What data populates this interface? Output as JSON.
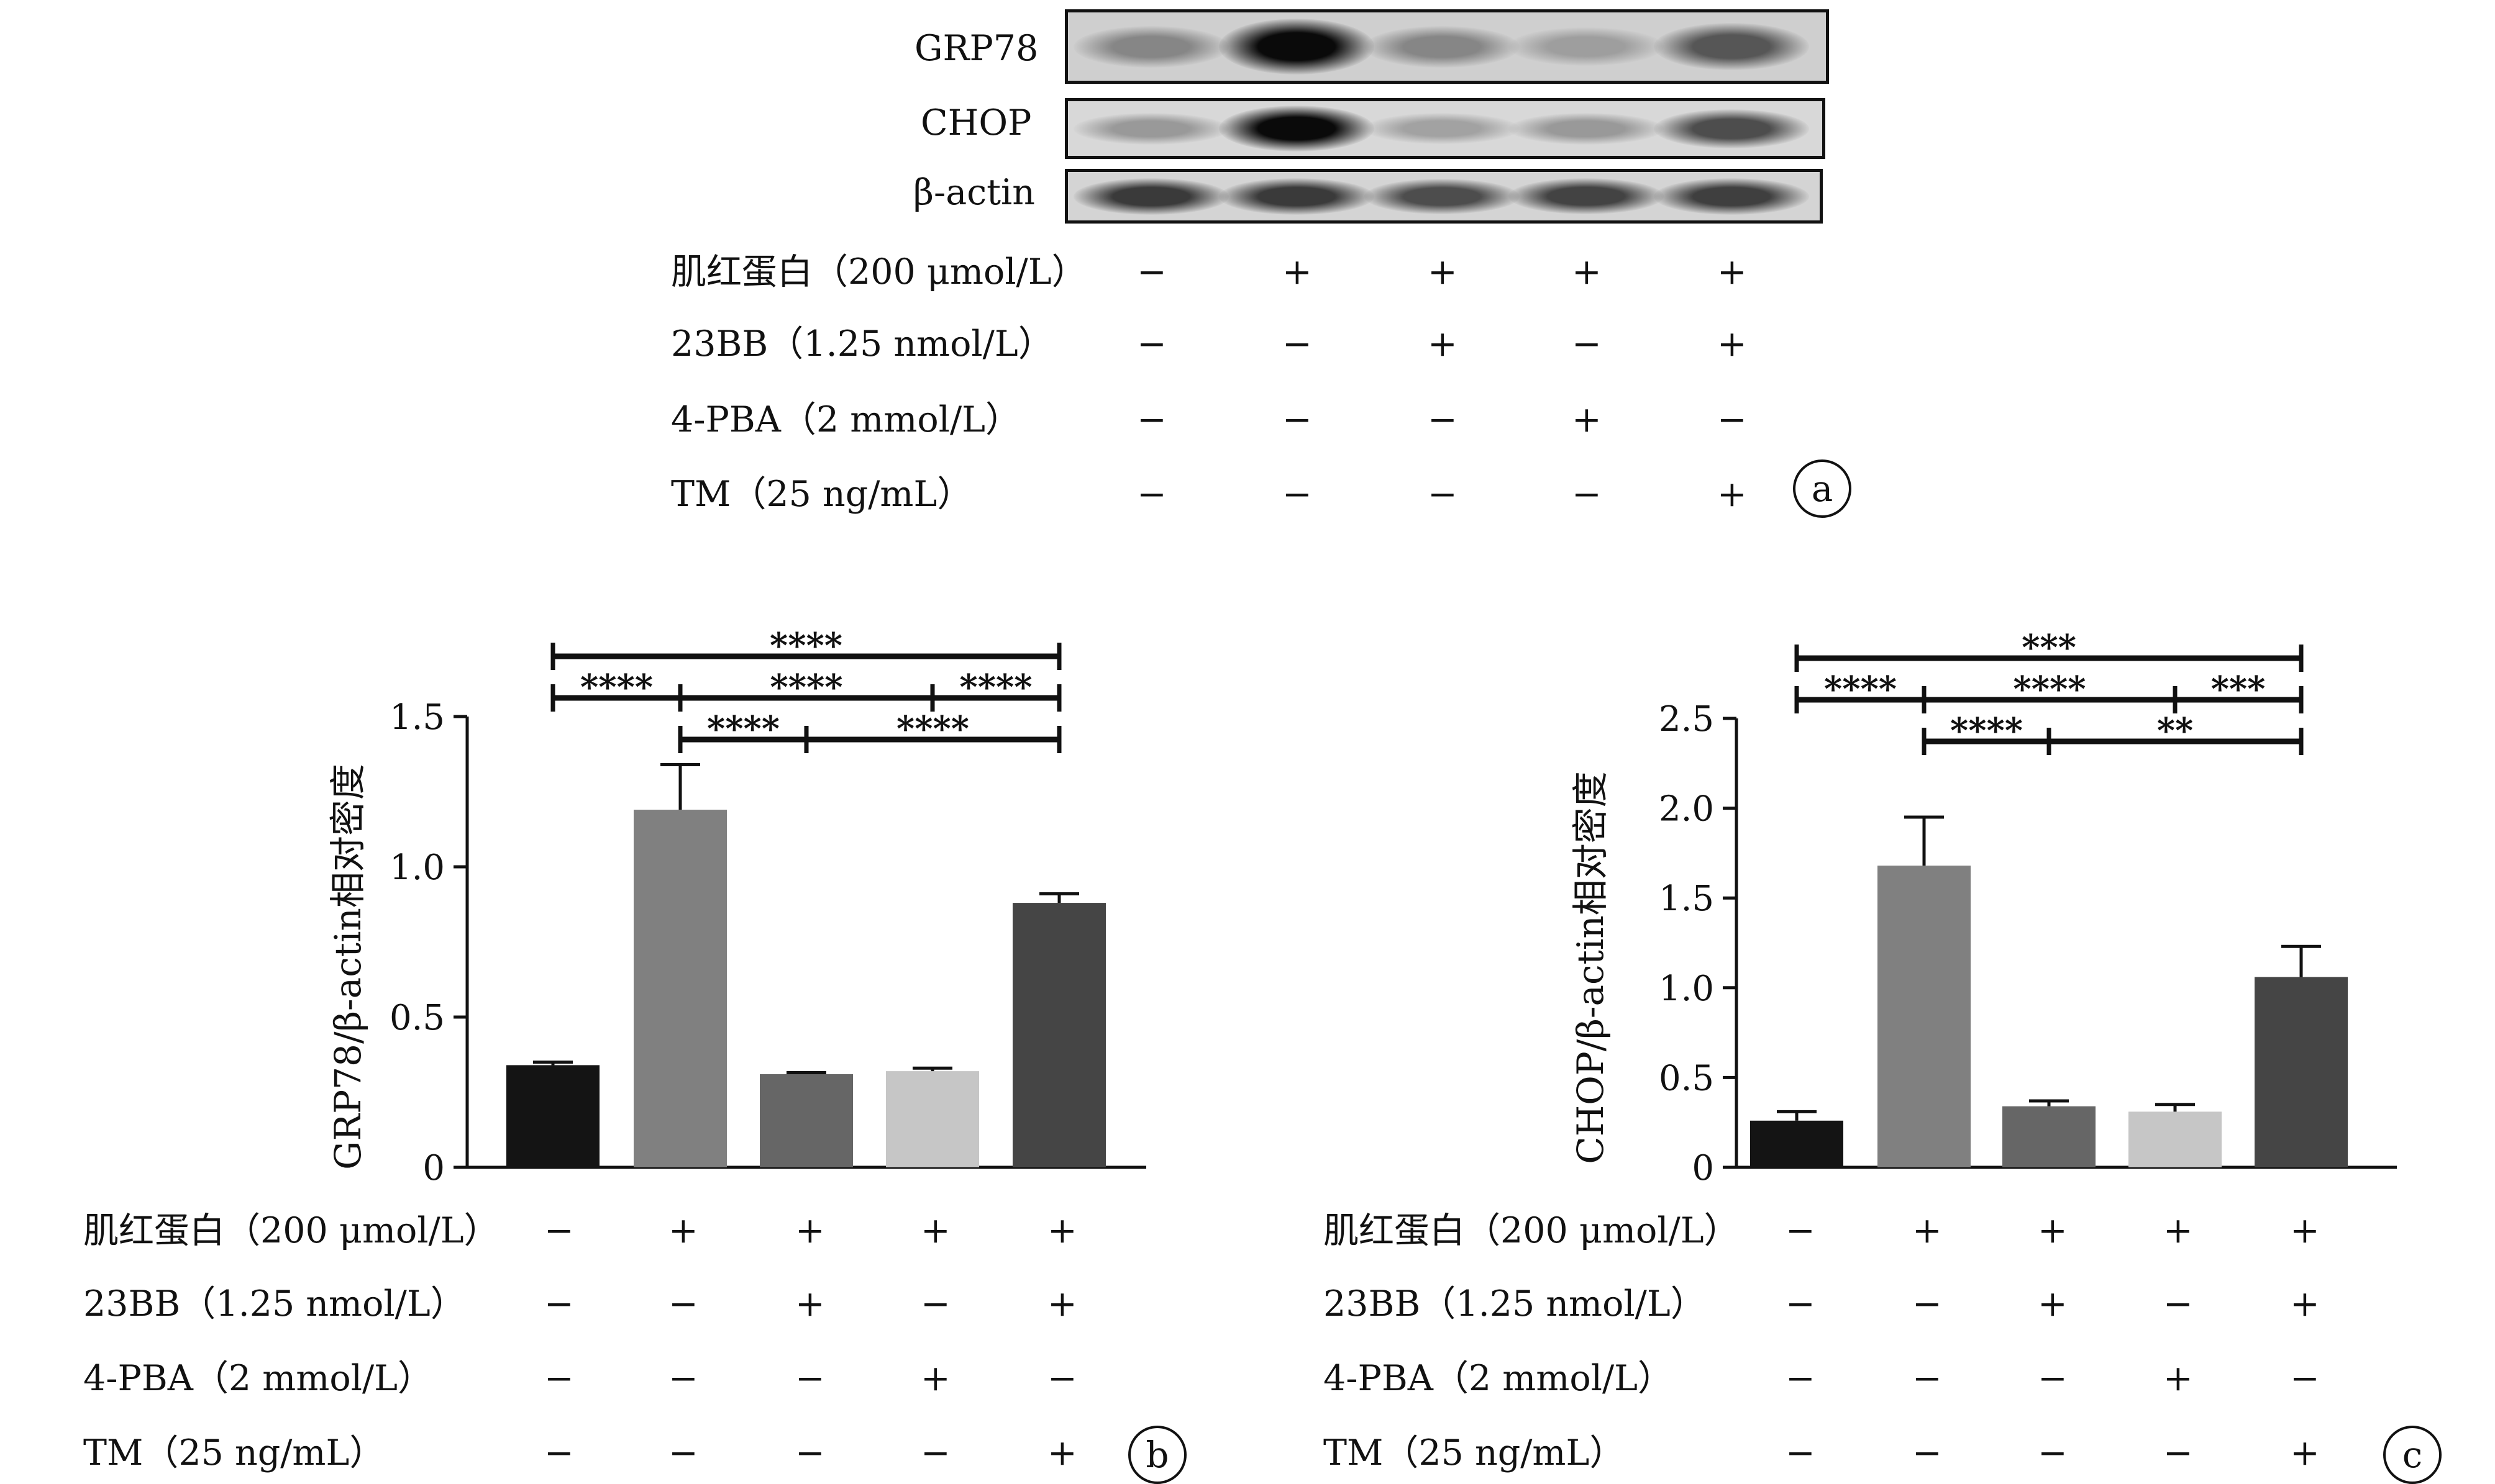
{
  "panel_a": {
    "blot_labels": [
      "GRP78",
      "CHOP",
      "β-actin"
    ],
    "conditions": [
      {
        "label": "肌红蛋白（200 μmol/L）",
        "signs": [
          "−",
          "+",
          "+",
          "+",
          "+"
        ]
      },
      {
        "label": "23BB（1.25 nmol/L）",
        "signs": [
          "−",
          "−",
          "+",
          "−",
          "+"
        ]
      },
      {
        "label": "4-PBA（2 mmol/L）",
        "signs": [
          "−",
          "−",
          "−",
          "+",
          "−"
        ]
      },
      {
        "label": "TM（25 ng/mL）",
        "signs": [
          "−",
          "−",
          "−",
          "−",
          "+"
        ]
      }
    ],
    "band_intensity": {
      "GRP78": [
        0.35,
        1.0,
        0.35,
        0.22,
        0.6
      ],
      "CHOP": [
        0.25,
        1.0,
        0.2,
        0.25,
        0.65
      ],
      "β-actin": [
        0.75,
        0.75,
        0.65,
        0.7,
        0.72
      ]
    },
    "panel_label": "a"
  },
  "chart_data": [
    {
      "type": "bar",
      "panel_label": "b",
      "ylabel": "GRP78/β-actin相对密度",
      "ylim": [
        0,
        1.5
      ],
      "yticks": [
        "0",
        "0.5",
        "1.0",
        "1.5"
      ],
      "values": [
        0.34,
        1.19,
        0.31,
        0.32,
        0.88
      ],
      "errors": [
        0.01,
        0.15,
        0.005,
        0.01,
        0.03
      ],
      "bar_colors": [
        "#141414",
        "#808080",
        "#666666",
        "#c6c6c6",
        "#454545"
      ],
      "conditions": [
        {
          "label": "肌红蛋白（200 μmol/L）",
          "signs": [
            "−",
            "+",
            "+",
            "+",
            "+"
          ]
        },
        {
          "label": "23BB（1.25 nmol/L）",
          "signs": [
            "−",
            "−",
            "+",
            "−",
            "+"
          ]
        },
        {
          "label": "4-PBA（2 mmol/L）",
          "signs": [
            "−",
            "−",
            "−",
            "+",
            "−"
          ]
        },
        {
          "label": "TM（25 ng/mL）",
          "signs": [
            "−",
            "−",
            "−",
            "−",
            "+"
          ]
        }
      ],
      "significance": [
        {
          "from": 0,
          "to": 4,
          "level": 3,
          "label": "****"
        },
        {
          "from": 0,
          "to": 1,
          "level": 2,
          "label": "****"
        },
        {
          "from": 1,
          "to": 3,
          "level": 2,
          "label": "****"
        },
        {
          "from": 3,
          "to": 4,
          "level": 2,
          "label": "****"
        },
        {
          "from": 1,
          "to": 2,
          "level": 1,
          "label": "****"
        },
        {
          "from": 2,
          "to": 4,
          "level": 1,
          "label": "****"
        }
      ]
    },
    {
      "type": "bar",
      "panel_label": "c",
      "ylabel": "CHOP/β-actin相对密度",
      "ylim": [
        0,
        2.5
      ],
      "yticks": [
        "0",
        "0.5",
        "1.0",
        "1.5",
        "2.0",
        "2.5"
      ],
      "values": [
        0.26,
        1.68,
        0.34,
        0.31,
        1.06
      ],
      "errors": [
        0.05,
        0.27,
        0.03,
        0.04,
        0.17
      ],
      "bar_colors": [
        "#141414",
        "#808080",
        "#666666",
        "#c6c6c6",
        "#454545"
      ],
      "conditions": [
        {
          "label": "肌红蛋白（200 μmol/L）",
          "signs": [
            "−",
            "+",
            "+",
            "+",
            "+"
          ]
        },
        {
          "label": "23BB（1.25 nmol/L）",
          "signs": [
            "−",
            "−",
            "+",
            "−",
            "+"
          ]
        },
        {
          "label": "4-PBA（2 mmol/L）",
          "signs": [
            "−",
            "−",
            "−",
            "+",
            "−"
          ]
        },
        {
          "label": "TM（25 ng/mL）",
          "signs": [
            "−",
            "−",
            "−",
            "−",
            "+"
          ]
        }
      ],
      "significance": [
        {
          "from": 0,
          "to": 4,
          "level": 3,
          "label": "***"
        },
        {
          "from": 0,
          "to": 1,
          "level": 2,
          "label": "****"
        },
        {
          "from": 1,
          "to": 3,
          "level": 2,
          "label": "****"
        },
        {
          "from": 3,
          "to": 4,
          "level": 2,
          "label": "***"
        },
        {
          "from": 1,
          "to": 2,
          "level": 1,
          "label": "****"
        },
        {
          "from": 2,
          "to": 4,
          "level": 1,
          "label": "**"
        }
      ]
    }
  ]
}
